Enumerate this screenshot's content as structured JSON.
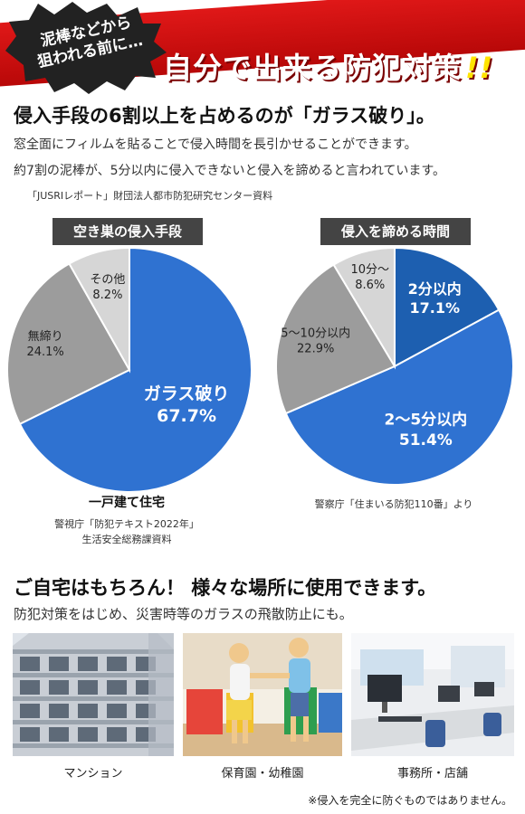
{
  "banner": {
    "lead_line1": "泥棒などから",
    "lead_line2": "狙われる前に…",
    "headline": "自分で出来る防犯対策",
    "headline_mark": "!!"
  },
  "intro": {
    "title": "侵入手段の6割以上を占めるのが「ガラス破り」。",
    "line1": "窓全面にフィルムを貼ることで侵入時間を長引かせることができます。",
    "line2": "約7割の泥棒が、5分以内に侵入できないと侵入を諦めると言われています。",
    "source": "「JUSRIレポート」財団法人都市防犯研究センター資料"
  },
  "chart_data": [
    {
      "type": "pie",
      "title": "空き巣の侵入手段",
      "slices": [
        {
          "label": "ガラス破り",
          "value": 67.7,
          "display": "67.7%",
          "color": "#2f72d1"
        },
        {
          "label": "無締り",
          "value": 24.1,
          "display": "24.1%",
          "color": "#9c9c9c"
        },
        {
          "label": "その他",
          "value": 8.2,
          "display": "8.2%",
          "color": "#d6d6d6"
        }
      ],
      "caption": "一戸建て住宅",
      "source_line1": "警視庁「防犯テキスト2022年」",
      "source_line2": "生活安全総務課資料"
    },
    {
      "type": "pie",
      "title": "侵入を諦める時間",
      "slices": [
        {
          "label": "2分以内",
          "value": 17.1,
          "display": "17.1%",
          "color": "#1d5fb0"
        },
        {
          "label": "2～5分以内",
          "value": 51.4,
          "display": "51.4%",
          "color": "#2f72d1"
        },
        {
          "label": "5～10分以内",
          "value": 22.9,
          "display": "22.9%",
          "color": "#9c9c9c"
        },
        {
          "label": "10分～",
          "value": 8.6,
          "display": "8.6%",
          "color": "#d6d6d6"
        }
      ],
      "source_line1": "警察庁「住まいる防犯110番」より"
    }
  ],
  "usage": {
    "title": "ご自宅はもちろん！ 様々な場所に使用できます。",
    "subtitle": "防犯対策をはじめ、災害時等のガラスの飛散防止にも。",
    "places": [
      "マンション",
      "保育園・幼稚園",
      "事務所・店舗"
    ]
  },
  "footnote": "※侵入を完全に防ぐものではありません。"
}
